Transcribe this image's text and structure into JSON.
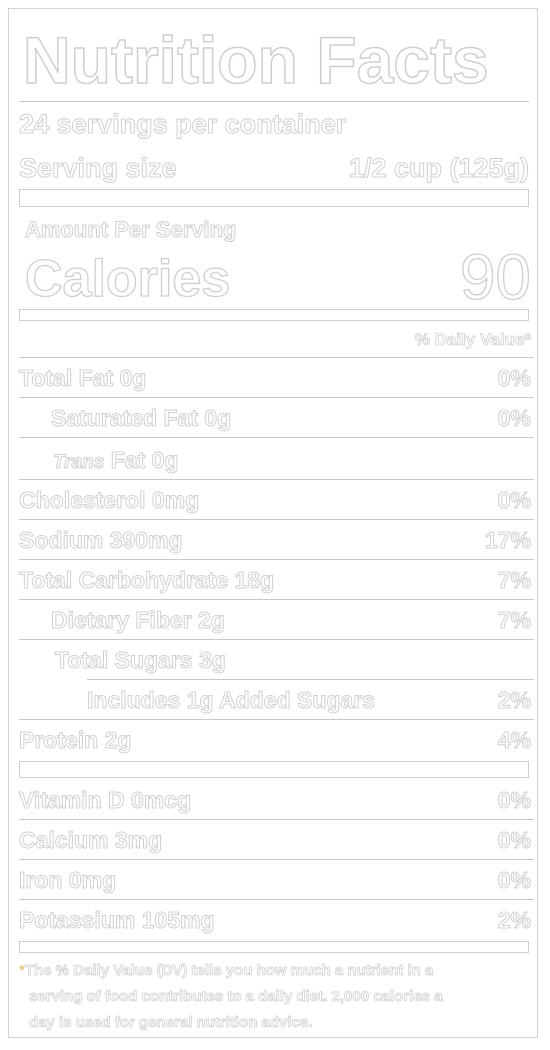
{
  "label": {
    "title": "Nutrition Facts",
    "servings_per_container": "24 servings per container",
    "serving_size_label": "Serving size",
    "serving_size_value": "1/2 cup (125g)",
    "amount_per_serving": "Amount Per Serving",
    "calories_label": "Calories",
    "calories_value": "90",
    "daily_value_header": "% Daily Value*",
    "rows": [
      {
        "name": "Total Fat 0g",
        "dv": "0%"
      },
      {
        "name": "Saturated Fat 0g",
        "dv": "0%"
      },
      {
        "name_italic": "Trans",
        "name_rest": " Fat 0g",
        "dv": ""
      },
      {
        "name": "Cholesterol 0mg",
        "dv": "0%"
      },
      {
        "name": "Sodium 390mg",
        "dv": "17%"
      },
      {
        "name": "Total Carbohydrate 18g",
        "dv": "7%"
      },
      {
        "name": "Dietary Fiber 2g",
        "dv": "7%"
      },
      {
        "name": "Total Sugars 3g",
        "dv": ""
      },
      {
        "name": "Includes 1g Added Sugars",
        "dv": "2%"
      },
      {
        "name": "Protein 2g",
        "dv": "4%"
      }
    ],
    "vitamins": [
      {
        "name": "Vitamin D 0mcg",
        "dv": "0%"
      },
      {
        "name": "Calcium 3mg",
        "dv": "0%"
      },
      {
        "name": "Iron 0mg",
        "dv": "0%"
      },
      {
        "name": "Potassium 105mg",
        "dv": "2%"
      }
    ],
    "footnote_star": "*",
    "footnote_line1": "The % Daily Value (DV) tells you how much a nutrient in a",
    "footnote_line2": "serving of food contributes to a daily diet. 2,000 calories a",
    "footnote_line3": "day is used for general nutrition advice."
  }
}
